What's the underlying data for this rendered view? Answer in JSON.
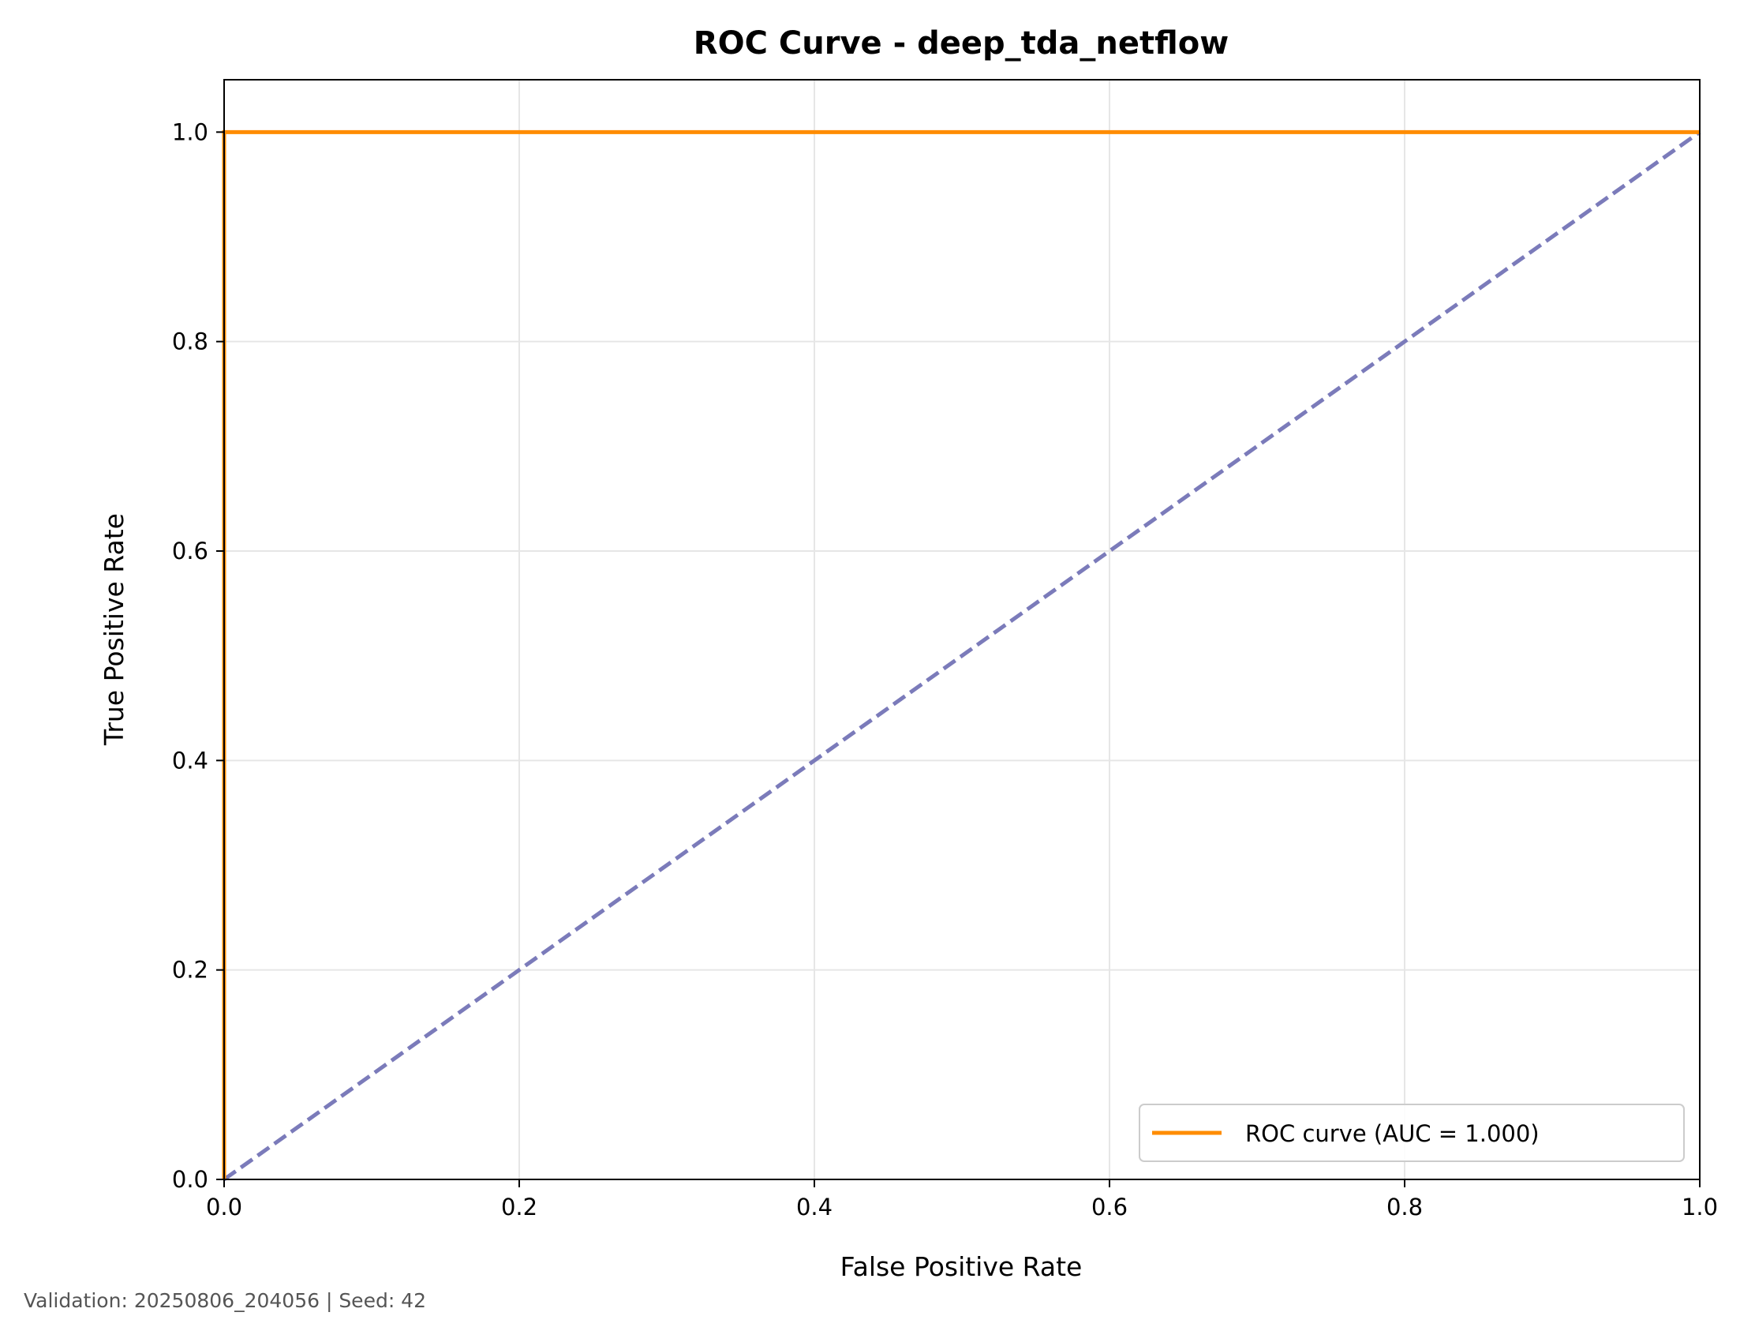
{
  "chart_data": {
    "type": "line",
    "title": "ROC Curve - deep_tda_netflow",
    "xlabel": "False Positive Rate",
    "ylabel": "True Positive Rate",
    "xlim": [
      0.0,
      1.0
    ],
    "ylim": [
      0.0,
      1.05
    ],
    "grid": true,
    "legend_position": "lower-right",
    "x_ticks": [
      0.0,
      0.2,
      0.4,
      0.6,
      0.8,
      1.0
    ],
    "x_tick_labels": [
      "0.0",
      "0.2",
      "0.4",
      "0.6",
      "0.8",
      "1.0"
    ],
    "y_ticks": [
      0.0,
      0.2,
      0.4,
      0.6,
      0.8,
      1.0
    ],
    "y_tick_labels": [
      "0.0",
      "0.2",
      "0.4",
      "0.6",
      "0.8",
      "1.0"
    ],
    "series": [
      {
        "name": "ROC curve (AUC = 1.000)",
        "color": "#ff8c00",
        "style": "solid",
        "x": [
          0.0,
          0.0,
          1.0
        ],
        "y": [
          0.0,
          1.0,
          1.0
        ]
      },
      {
        "color": "#7b7bba",
        "style": "dashed",
        "x": [
          0.0,
          1.0
        ],
        "y": [
          0.0,
          1.0
        ]
      }
    ]
  },
  "footer_text": "Validation: 20250806_204056 | Seed: 42"
}
